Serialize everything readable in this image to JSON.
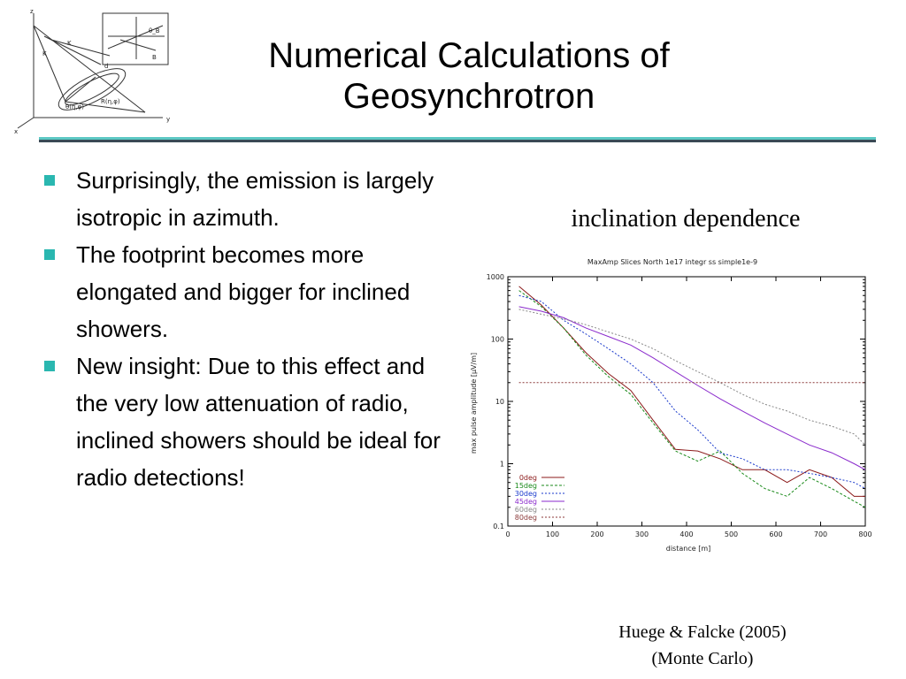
{
  "slide": {
    "title_line1": "Numerical Calculations of",
    "title_line2": "Geosynchrotron",
    "bullets": [
      "Surprisingly, the emission is largely isotropic in azimuth.",
      "The footprint becomes more elongated and bigger for inclined showers.",
      "New insight: Due to this effect and the very low attenuation of radio, inclined showers should be ideal for radio detections!"
    ],
    "figure_caption": "inclination  dependence",
    "citation_line1": "Huege & Falcke (2005)",
    "citation_line2": "(Monte Carlo)",
    "accent_color": "#2ab7b0",
    "diagram_labels": [
      "z",
      "x",
      "y",
      "K",
      "K",
      "d",
      "B",
      "R(η,φ)",
      "θ(η,φ)",
      "θ_B"
    ]
  },
  "chart_data": {
    "type": "line",
    "title": "MaxAmp Slices North 1e17 integr ss simple1e-9",
    "xlabel": "distance [m]",
    "ylabel": "max pulse amplitude [µV/m]",
    "xlim": [
      0,
      800
    ],
    "ylim": [
      0.1,
      1000
    ],
    "yscale": "log",
    "x_ticks": [
      0,
      100,
      200,
      300,
      400,
      500,
      600,
      700,
      800
    ],
    "y_ticks": [
      0.1,
      1,
      10,
      100,
      1000
    ],
    "y_tick_labels": [
      "0.1",
      "1",
      "10",
      "100",
      "1000"
    ],
    "legend_position": "bottom-left",
    "x": [
      25,
      75,
      125,
      175,
      225,
      275,
      325,
      375,
      425,
      475,
      525,
      575,
      625,
      675,
      725,
      775,
      800
    ],
    "series": [
      {
        "name": "0deg",
        "color": "#8b1a1a",
        "values": [
          700,
          350,
          150,
          60,
          28,
          15,
          5,
          1.7,
          1.6,
          1.2,
          0.8,
          0.8,
          0.5,
          0.8,
          0.6,
          0.3,
          0.3
        ]
      },
      {
        "name": "15deg",
        "color": "#1a8a1a",
        "values": [
          600,
          330,
          150,
          55,
          25,
          13,
          4.5,
          1.6,
          1.1,
          1.6,
          0.7,
          0.4,
          0.3,
          0.6,
          0.4,
          0.25,
          0.2
        ]
      },
      {
        "name": "30deg",
        "color": "#1a3acc",
        "values": [
          500,
          400,
          200,
          120,
          70,
          40,
          20,
          7,
          3.5,
          1.5,
          1.2,
          0.8,
          0.8,
          0.7,
          0.6,
          0.5,
          0.4
        ]
      },
      {
        "name": "45deg",
        "color": "#8a2acc",
        "values": [
          330,
          280,
          220,
          150,
          110,
          80,
          50,
          30,
          18,
          11,
          7,
          4.5,
          3,
          2,
          1.5,
          1,
          0.8
        ]
      },
      {
        "name": "60deg",
        "color": "#888888",
        "values": [
          300,
          250,
          210,
          170,
          130,
          100,
          70,
          45,
          30,
          20,
          13,
          9,
          7,
          5,
          4,
          3,
          2
        ]
      },
      {
        "name": "80deg",
        "color": "#8b3a3a",
        "values": [
          20,
          20,
          20,
          20,
          20,
          20,
          20,
          20,
          20,
          20,
          20,
          20,
          20,
          20,
          20,
          20,
          20
        ]
      }
    ]
  }
}
